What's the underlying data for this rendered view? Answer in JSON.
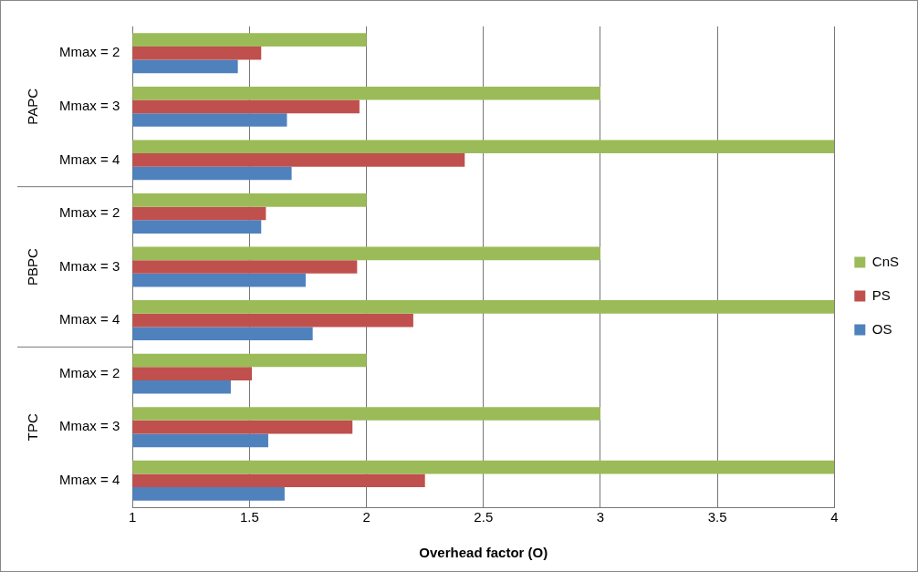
{
  "chart_data": {
    "type": "bar",
    "orientation": "horizontal",
    "xlabel": "Overhead factor (O)",
    "categories": [
      "Mmax = 2",
      "Mmax = 3",
      "Mmax = 4",
      "Mmax = 2",
      "Mmax = 3",
      "Mmax = 4",
      "Mmax = 2",
      "Mmax = 3",
      "Mmax = 4"
    ],
    "annotations": [
      "PAPC",
      "PBPC",
      "TPC"
    ],
    "series": [
      {
        "name": "CnS",
        "color": "#9bbb59",
        "values": [
          2,
          3,
          4,
          2,
          3,
          4,
          2,
          3,
          4
        ]
      },
      {
        "name": "PS",
        "color": "#c0504d",
        "values": [
          1.55,
          1.97,
          2.42,
          1.57,
          1.96,
          2.2,
          1.51,
          1.94,
          2.25
        ]
      },
      {
        "name": "OS",
        "color": "#4f81bd",
        "values": [
          1.45,
          1.66,
          1.68,
          1.55,
          1.74,
          1.77,
          1.42,
          1.58,
          1.65
        ]
      }
    ],
    "xlim": [
      1,
      4
    ],
    "xticks": [
      1,
      1.5,
      2,
      2.5,
      3,
      3.5,
      4
    ],
    "grid": "x",
    "legend": "right"
  }
}
